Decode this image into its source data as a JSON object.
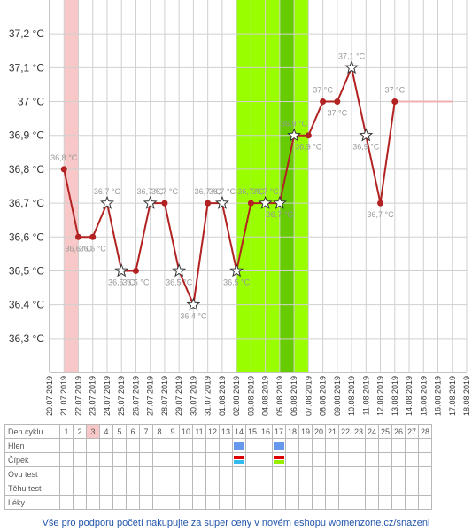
{
  "chart_data": {
    "type": "line",
    "y_ticks": [
      "36,3 °C",
      "36,4 °C",
      "36,5 °C",
      "36,6 °C",
      "36,7 °C",
      "36,8 °C",
      "36,9 °C",
      "37 °C",
      "37,1 °C",
      "37,2 °C"
    ],
    "y_tick_values": [
      36.3,
      36.4,
      36.5,
      36.6,
      36.7,
      36.8,
      36.9,
      37.0,
      37.1,
      37.2
    ],
    "ylim": [
      36.2,
      37.3
    ],
    "x_dates": [
      "20.07.2019",
      "21.07.2019",
      "22.07.2019",
      "23.07.2019",
      "24.07.2019",
      "25.07.2019",
      "26.07.2019",
      "27.07.2019",
      "28.07.2019",
      "29.07.2019",
      "30.07.2019",
      "31.07.2019",
      "01.08.2019",
      "02.08.2019",
      "03.08.2019",
      "04.08.2019",
      "05.08.2019",
      "06.08.2019",
      "07.08.2019",
      "08.08.2019",
      "09.08.2019",
      "10.08.2019",
      "11.08.2019",
      "12.08.2019",
      "13.08.2019",
      "14.08.2019",
      "15.08.2019",
      "16.08.2019",
      "17.08.2019",
      "18.08.2019"
    ],
    "points": [
      {
        "date": "21.07.2019",
        "value": 36.8,
        "label": "36,8 °C",
        "star": false
      },
      {
        "date": "22.07.2019",
        "value": 36.6,
        "label": "36,6 °C",
        "star": false
      },
      {
        "date": "23.07.2019",
        "value": 36.6,
        "label": "36,6 °C",
        "star": false
      },
      {
        "date": "24.07.2019",
        "value": 36.7,
        "label": "36,7 °C",
        "star": true
      },
      {
        "date": "25.07.2019",
        "value": 36.5,
        "label": "36,5 °C",
        "star": true
      },
      {
        "date": "26.07.2019",
        "value": 36.5,
        "label": "36,5 °C",
        "star": false
      },
      {
        "date": "27.07.2019",
        "value": 36.7,
        "label": "36,7 °C",
        "star": true
      },
      {
        "date": "28.07.2019",
        "value": 36.7,
        "label": "36,7 °C",
        "star": false
      },
      {
        "date": "29.07.2019",
        "value": 36.5,
        "label": "36,5 °C",
        "star": true
      },
      {
        "date": "30.07.2019",
        "value": 36.4,
        "label": "36,4 °C",
        "star": true
      },
      {
        "date": "31.07.2019",
        "value": 36.7,
        "label": "36,7 °C",
        "star": false
      },
      {
        "date": "01.08.2019",
        "value": 36.7,
        "label": "36,7 °C",
        "star": true
      },
      {
        "date": "02.08.2019",
        "value": 36.5,
        "label": "36,5 °C",
        "star": true
      },
      {
        "date": "03.08.2019",
        "value": 36.7,
        "label": "36,7 °C",
        "star": false
      },
      {
        "date": "04.08.2019",
        "value": 36.7,
        "label": "36,7 °C",
        "star": true
      },
      {
        "date": "05.08.2019",
        "value": 36.7,
        "label": "36,7 °C",
        "star": true
      },
      {
        "date": "06.08.2019",
        "value": 36.9,
        "label": "36,9 °C",
        "star": true
      },
      {
        "date": "07.08.2019",
        "value": 36.9,
        "label": "36,9 °C",
        "star": false
      },
      {
        "date": "08.08.2019",
        "value": 37.0,
        "label": "37 °C",
        "star": false
      },
      {
        "date": "09.08.2019",
        "value": 37.0,
        "label": "37 °C",
        "star": false
      },
      {
        "date": "10.08.2019",
        "value": 37.1,
        "label": "37,1 °C",
        "star": true
      },
      {
        "date": "11.08.2019",
        "value": 36.9,
        "label": "36,9 °C",
        "star": true
      },
      {
        "date": "12.08.2019",
        "value": 36.7,
        "label": "36,7 °C",
        "star": false
      },
      {
        "date": "13.08.2019",
        "value": 37.0,
        "label": "37 °C",
        "star": false
      }
    ],
    "flat_line": {
      "from": "13.08.2019",
      "to": "17.08.2019",
      "value": 37.0,
      "color": "#f0b0b0"
    },
    "bands": [
      {
        "from": "21.07.2019",
        "to": "22.07.2019",
        "color": "#f8c8c8"
      },
      {
        "from": "02.08.2019",
        "to": "07.08.2019",
        "color": "#99ff00"
      },
      {
        "from": "05.08.2019",
        "to": "06.08.2019",
        "color": "#66cc00"
      }
    ],
    "line_color": "#b22222",
    "grid": true
  },
  "cycle_table": {
    "header_label": "Den cyklu",
    "days": [
      "1",
      "2",
      "3",
      "4",
      "5",
      "6",
      "7",
      "8",
      "9",
      "10",
      "11",
      "12",
      "13",
      "14",
      "15",
      "16",
      "17",
      "18",
      "19",
      "20",
      "21",
      "22",
      "23",
      "24",
      "25",
      "26",
      "27",
      "28"
    ],
    "highlight_day": "3",
    "rows": [
      {
        "label": "Hlen",
        "marks": {
          "14": [
            "#6699ee"
          ],
          "17": [
            "#6699ee"
          ]
        }
      },
      {
        "label": "Čípek",
        "marks": {
          "14": [
            "#dd0000",
            "#33bbee"
          ],
          "17": [
            "#dd0000",
            "#99ee00"
          ]
        }
      },
      {
        "label": "Ovu test",
        "marks": {}
      },
      {
        "label": "Těhu test",
        "marks": {}
      },
      {
        "label": "Léky",
        "marks": {}
      }
    ]
  },
  "footer_text": "Vše pro podporu početí nakupujte za super ceny v novém eshopu womenzone.cz/snazeni"
}
